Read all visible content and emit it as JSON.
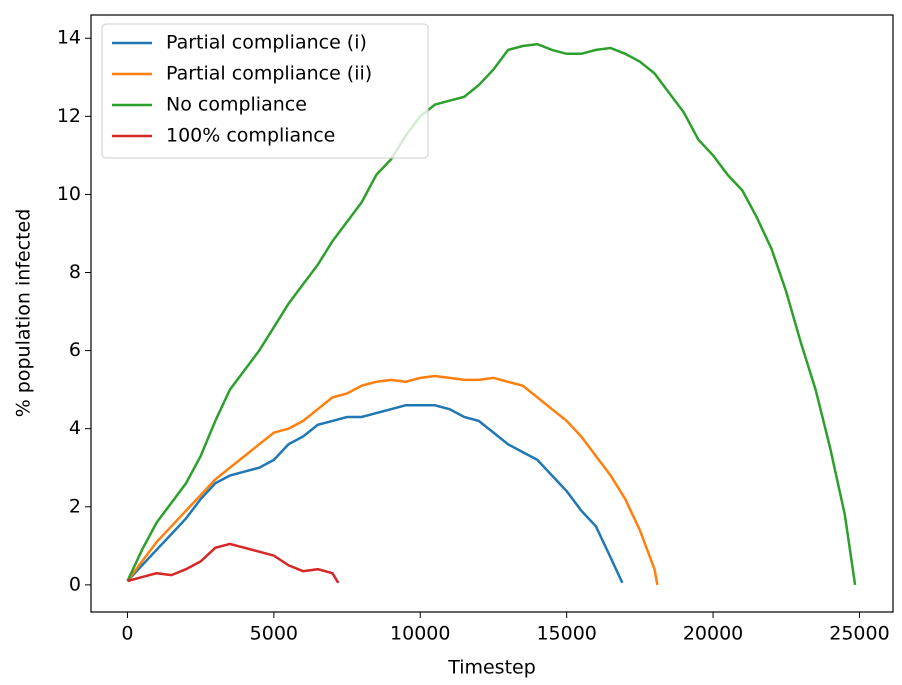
{
  "chart_data": {
    "type": "line",
    "xlabel": "Timestep",
    "ylabel": "% population infected",
    "xlim": [
      -1245,
      26145
    ],
    "ylim": [
      -0.695,
      14.595
    ],
    "xticks": [
      0,
      5000,
      10000,
      15000,
      20000,
      25000
    ],
    "yticks": [
      0,
      2,
      4,
      6,
      8,
      10,
      12,
      14
    ],
    "legend": "upper-left",
    "series": [
      {
        "name": "Partial compliance (i)",
        "color": "#1f77b4",
        "x": [
          0,
          500,
          1000,
          1500,
          2000,
          2500,
          3000,
          3500,
          4000,
          4500,
          5000,
          5500,
          6000,
          6500,
          7000,
          7500,
          8000,
          8500,
          9000,
          9500,
          10000,
          10500,
          11000,
          11500,
          12000,
          12500,
          13000,
          13500,
          14000,
          14500,
          15000,
          15500,
          16000,
          16500,
          16900
        ],
        "values": [
          0.1,
          0.5,
          0.9,
          1.3,
          1.7,
          2.2,
          2.6,
          2.8,
          2.9,
          3.0,
          3.2,
          3.6,
          3.8,
          4.1,
          4.2,
          4.3,
          4.3,
          4.4,
          4.5,
          4.6,
          4.6,
          4.6,
          4.5,
          4.3,
          4.2,
          3.9,
          3.6,
          3.4,
          3.2,
          2.8,
          2.4,
          1.9,
          1.5,
          0.7,
          0.05
        ]
      },
      {
        "name": "Partial compliance (ii)",
        "color": "#ff7f0e",
        "x": [
          0,
          500,
          1000,
          1500,
          2000,
          2500,
          3000,
          3500,
          4000,
          4500,
          5000,
          5500,
          6000,
          6500,
          7000,
          7500,
          8000,
          8500,
          9000,
          9500,
          10000,
          10500,
          11000,
          11500,
          12000,
          12500,
          13000,
          13500,
          14000,
          14500,
          15000,
          15500,
          16000,
          16500,
          17000,
          17500,
          18000,
          18100
        ],
        "values": [
          0.1,
          0.6,
          1.1,
          1.5,
          1.9,
          2.3,
          2.7,
          3.0,
          3.3,
          3.6,
          3.9,
          4.0,
          4.2,
          4.5,
          4.8,
          4.9,
          5.1,
          5.2,
          5.25,
          5.2,
          5.3,
          5.35,
          5.3,
          5.25,
          5.25,
          5.3,
          5.2,
          5.1,
          4.8,
          4.5,
          4.2,
          3.8,
          3.3,
          2.8,
          2.2,
          1.4,
          0.4,
          0
        ]
      },
      {
        "name": "No compliance",
        "color": "#2ca02c",
        "x": [
          0,
          500,
          1000,
          1500,
          2000,
          2500,
          3000,
          3500,
          4000,
          4500,
          5000,
          5500,
          6000,
          6500,
          7000,
          7500,
          8000,
          8500,
          9000,
          9500,
          10000,
          10500,
          11000,
          11500,
          12000,
          12500,
          13000,
          13500,
          14000,
          14500,
          15000,
          15500,
          16000,
          16500,
          17000,
          17500,
          18000,
          18500,
          19000,
          19500,
          20000,
          20500,
          21000,
          21500,
          22000,
          22500,
          23000,
          23500,
          24000,
          24500,
          24850
        ],
        "values": [
          0.1,
          0.9,
          1.6,
          2.1,
          2.6,
          3.3,
          4.2,
          5.0,
          5.5,
          6.0,
          6.6,
          7.2,
          7.7,
          8.2,
          8.8,
          9.3,
          9.8,
          10.5,
          10.9,
          11.5,
          12.0,
          12.3,
          12.4,
          12.5,
          12.8,
          13.2,
          13.7,
          13.8,
          13.85,
          13.7,
          13.6,
          13.6,
          13.7,
          13.75,
          13.6,
          13.4,
          13.1,
          12.6,
          12.1,
          11.4,
          11.0,
          10.5,
          10.1,
          9.4,
          8.6,
          7.5,
          6.2,
          5.0,
          3.5,
          1.8,
          0
        ]
      },
      {
        "name": "100% compliance",
        "color": "#d62728",
        "x": [
          0,
          500,
          1000,
          1500,
          2000,
          2500,
          3000,
          3500,
          4000,
          4500,
          5000,
          5500,
          6000,
          6500,
          7000,
          7200
        ],
        "values": [
          0.1,
          0.2,
          0.3,
          0.25,
          0.4,
          0.6,
          0.95,
          1.05,
          0.95,
          0.85,
          0.75,
          0.5,
          0.35,
          0.4,
          0.3,
          0.05
        ]
      }
    ]
  }
}
